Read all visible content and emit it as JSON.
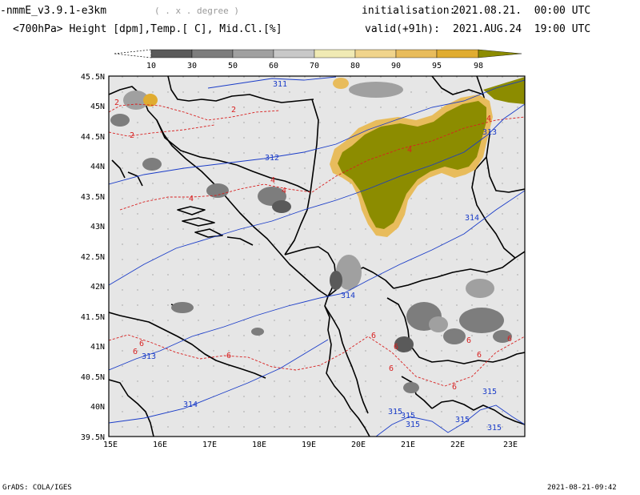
{
  "header": {
    "model": "-nmmE_v3.9.1-e3km",
    "units": "( . x . degree )",
    "init_label": "initialisation:",
    "init_value": "2021.08.21.  00:00 UTC",
    "subtitle": "<700hPa> Height [dpm],Temp.[ C], Mid.Cl.[%]",
    "valid_label": "valid(+91h):",
    "valid_value": "2021.AUG.24  19:00 UTC"
  },
  "colorbar": {
    "labels": [
      "10",
      "30",
      "50",
      "60",
      "70",
      "80",
      "90",
      "95",
      "98"
    ],
    "colors": [
      "#ffffff",
      "#5a5a5a",
      "#7d7d7d",
      "#a0a0a0",
      "#c8c8c8",
      "#f0eab4",
      "#f0d48c",
      "#e8bc5c",
      "#e0ac30",
      "#8c8c00"
    ]
  },
  "map": {
    "lat_labels": [
      "45.5N",
      "45N",
      "44.5N",
      "44N",
      "43.5N",
      "43N",
      "42.5N",
      "42N",
      "41.5N",
      "41N",
      "40.5N",
      "40N",
      "39.5N"
    ],
    "lon_labels": [
      "15E",
      "16E",
      "17E",
      "18E",
      "19E",
      "20E",
      "21E",
      "22E",
      "23E"
    ],
    "background_color": "#e6e6e6",
    "height_color": "#1a3cc8",
    "temp_color": "#d82020",
    "cloud_high_color": "#8c8c00",
    "height_contour_labels": [
      "311",
      "312",
      "313",
      "314",
      "314",
      "313",
      "314",
      "315",
      "315",
      "315",
      "315",
      "315",
      "315"
    ],
    "temp_contour_labels": [
      "2",
      "2",
      "2",
      "4",
      "4",
      "4",
      "4",
      "4",
      "6",
      "6",
      "6",
      "6",
      "6",
      "6",
      "6",
      "6",
      "6",
      "6"
    ]
  },
  "footer": {
    "left": "GrADS: COLA/IGES",
    "right": "2021-08-21-09:42"
  }
}
